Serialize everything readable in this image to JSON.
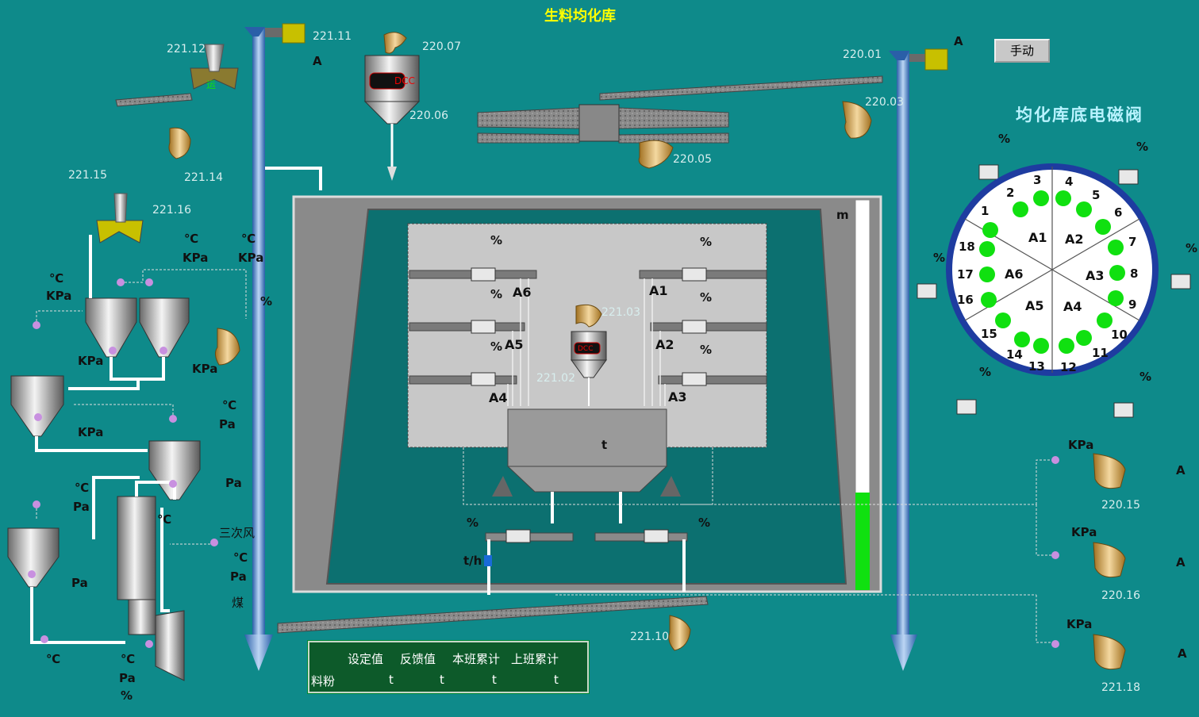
{
  "title": "生料均化库",
  "manual_button": "手动",
  "valve_panel_title": "均化库底电磁阀",
  "equipment_tags": {
    "t221_11": "221.11",
    "t221_12": "221.12",
    "t221_14": "221.14",
    "t221_15": "221.15",
    "t221_16": "221.16",
    "t220_07": "220.07",
    "t220_06": "220.06",
    "t220_01": "220.01",
    "t220_03": "220.03",
    "t220_05": "220.05",
    "t221_03": "221.03",
    "t221_02": "221.02",
    "t221_10": "221.10",
    "t220_15": "220.15",
    "t220_16": "220.16",
    "t221_18": "221.18"
  },
  "units": {
    "amp": "A",
    "kpa": "KPa",
    "celsius": "℃",
    "pa": "Pa",
    "percent": "%",
    "meter": "m",
    "ton": "t",
    "tph": "t/h"
  },
  "labels": {
    "tertiary_air": "三次风",
    "coal": "煤",
    "convey": "运",
    "dcc": "DCC"
  },
  "silo_sections": [
    "A1",
    "A2",
    "A3",
    "A4",
    "A5",
    "A6"
  ],
  "valve_numbers": [
    "1",
    "2",
    "3",
    "4",
    "5",
    "6",
    "7",
    "8",
    "9",
    "10",
    "11",
    "12",
    "13",
    "14",
    "15",
    "16",
    "17",
    "18"
  ],
  "level_bar": {
    "fill_fraction": 0.25,
    "fill_color": "#10e010"
  },
  "info_table": {
    "headers": [
      "设定值",
      "反馈值",
      "本班累计",
      "上班累计"
    ],
    "row_label": "料粉",
    "row_values": [
      "t",
      "t",
      "t",
      "t"
    ]
  },
  "colors": {
    "background": "#0e8a8a",
    "valve_on": "#10e010",
    "panel_bg": "#0d5a2a"
  }
}
